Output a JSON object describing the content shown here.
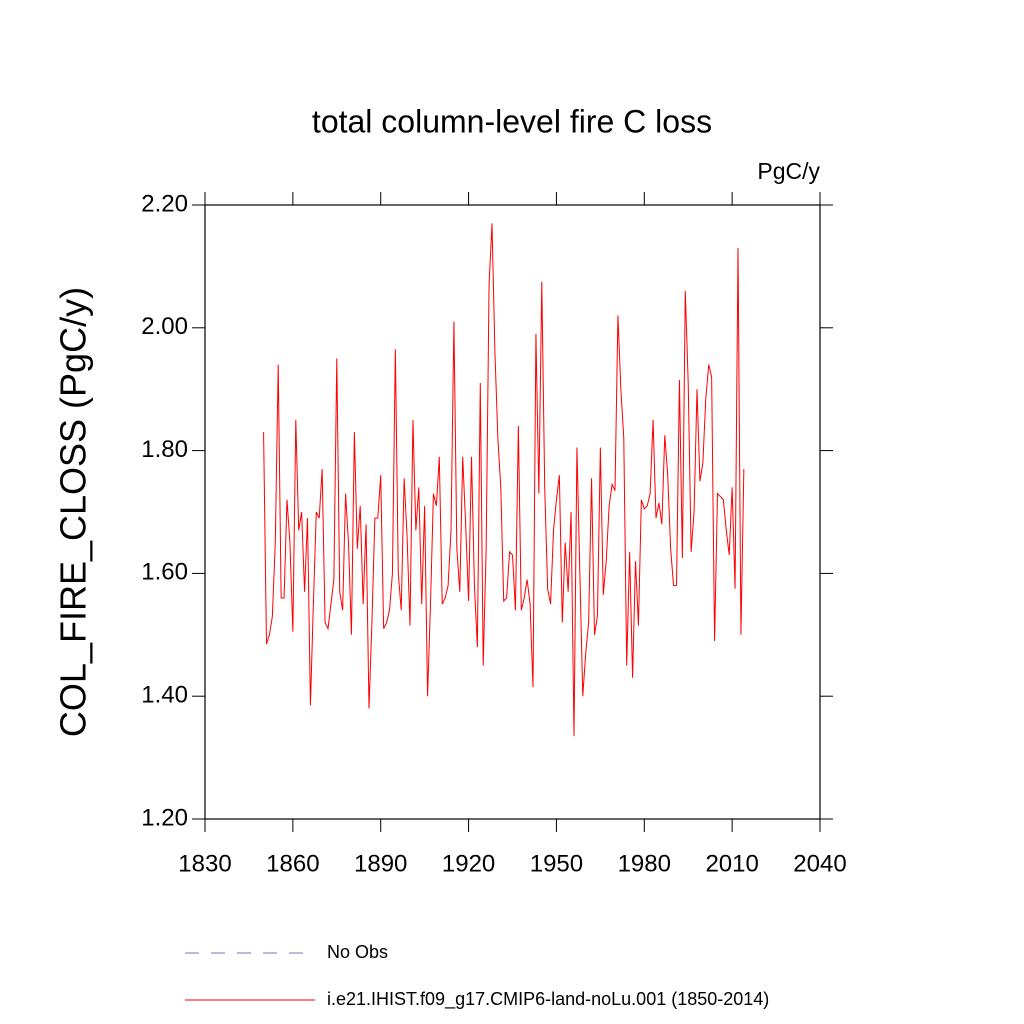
{
  "chart_data": {
    "type": "line",
    "title": "total column-level fire C loss",
    "units": "PgC/y",
    "ylabel": "COL_FIRE_CLOSS  (PgC/y)",
    "xlim": [
      1830,
      2040
    ],
    "xticks": [
      1830,
      1860,
      1890,
      1920,
      1950,
      1980,
      2010,
      2040
    ],
    "ylim": [
      1.2,
      2.2
    ],
    "yticks": [
      {
        "value": 1.2,
        "label": "1.20"
      },
      {
        "value": 1.4,
        "label": "1.40"
      },
      {
        "value": 1.6,
        "label": "1.60"
      },
      {
        "value": 1.8,
        "label": "1.80"
      },
      {
        "value": 2.0,
        "label": "2.00"
      },
      {
        "value": 2.2,
        "label": "2.20"
      }
    ],
    "x": [
      1850,
      1851,
      1852,
      1853,
      1854,
      1855,
      1856,
      1857,
      1858,
      1859,
      1860,
      1861,
      1862,
      1863,
      1864,
      1865,
      1866,
      1867,
      1868,
      1869,
      1870,
      1871,
      1872,
      1873,
      1874,
      1875,
      1876,
      1877,
      1878,
      1879,
      1880,
      1881,
      1882,
      1883,
      1884,
      1885,
      1886,
      1887,
      1888,
      1889,
      1890,
      1891,
      1892,
      1893,
      1894,
      1895,
      1896,
      1897,
      1898,
      1899,
      1900,
      1901,
      1902,
      1903,
      1904,
      1905,
      1906,
      1907,
      1908,
      1909,
      1910,
      1911,
      1912,
      1913,
      1914,
      1915,
      1916,
      1917,
      1918,
      1919,
      1920,
      1921,
      1922,
      1923,
      1924,
      1925,
      1926,
      1927,
      1928,
      1929,
      1930,
      1931,
      1932,
      1933,
      1934,
      1935,
      1936,
      1937,
      1938,
      1939,
      1940,
      1941,
      1942,
      1943,
      1944,
      1945,
      1946,
      1947,
      1948,
      1949,
      1950,
      1951,
      1952,
      1953,
      1954,
      1955,
      1956,
      1957,
      1958,
      1959,
      1960,
      1961,
      1962,
      1963,
      1964,
      1965,
      1966,
      1967,
      1968,
      1969,
      1970,
      1971,
      1972,
      1973,
      1974,
      1975,
      1976,
      1977,
      1978,
      1979,
      1980,
      1981,
      1982,
      1983,
      1984,
      1985,
      1986,
      1987,
      1988,
      1989,
      1990,
      1991,
      1992,
      1993,
      1994,
      1995,
      1996,
      1997,
      1998,
      1999,
      2000,
      2001,
      2002,
      2003,
      2004,
      2005,
      2006,
      2007,
      2008,
      2009,
      2010,
      2011,
      2012,
      2013,
      2014
    ],
    "series": [
      {
        "name": "No Obs",
        "color": "#7070c0",
        "dash": "14 12"
      },
      {
        "name": "i.e21.IHIST.f09_g17.CMIP6-land-noLu.001 (1850-2014)",
        "color": "#ff0000",
        "values": [
          1.83,
          1.485,
          1.5,
          1.53,
          1.65,
          1.94,
          1.56,
          1.56,
          1.72,
          1.65,
          1.505,
          1.85,
          1.67,
          1.7,
          1.57,
          1.69,
          1.385,
          1.55,
          1.7,
          1.69,
          1.77,
          1.52,
          1.51,
          1.55,
          1.59,
          1.95,
          1.57,
          1.54,
          1.73,
          1.65,
          1.5,
          1.83,
          1.64,
          1.71,
          1.55,
          1.68,
          1.38,
          1.52,
          1.69,
          1.69,
          1.76,
          1.51,
          1.52,
          1.54,
          1.6,
          1.965,
          1.6,
          1.54,
          1.755,
          1.66,
          1.515,
          1.85,
          1.67,
          1.74,
          1.55,
          1.71,
          1.4,
          1.55,
          1.73,
          1.71,
          1.79,
          1.55,
          1.56,
          1.58,
          1.67,
          2.01,
          1.64,
          1.57,
          1.79,
          1.68,
          1.555,
          1.79,
          1.58,
          1.48,
          1.91,
          1.45,
          1.64,
          2.07,
          2.17,
          1.96,
          1.82,
          1.74,
          1.555,
          1.56,
          1.635,
          1.63,
          1.54,
          1.84,
          1.54,
          1.56,
          1.59,
          1.55,
          1.415,
          1.99,
          1.73,
          2.075,
          1.74,
          1.575,
          1.55,
          1.67,
          1.72,
          1.76,
          1.52,
          1.65,
          1.57,
          1.7,
          1.335,
          1.805,
          1.6,
          1.4,
          1.47,
          1.52,
          1.755,
          1.5,
          1.53,
          1.805,
          1.565,
          1.62,
          1.71,
          1.745,
          1.735,
          2.02,
          1.9,
          1.82,
          1.45,
          1.635,
          1.43,
          1.62,
          1.515,
          1.72,
          1.705,
          1.71,
          1.73,
          1.85,
          1.69,
          1.715,
          1.68,
          1.825,
          1.76,
          1.64,
          1.58,
          1.58,
          1.915,
          1.625,
          2.06,
          1.91,
          1.635,
          1.7,
          1.9,
          1.75,
          1.78,
          1.885,
          1.94,
          1.92,
          1.49,
          1.73,
          1.725,
          1.72,
          1.67,
          1.63,
          1.74,
          1.575,
          2.13,
          1.5,
          1.77
        ]
      }
    ]
  }
}
